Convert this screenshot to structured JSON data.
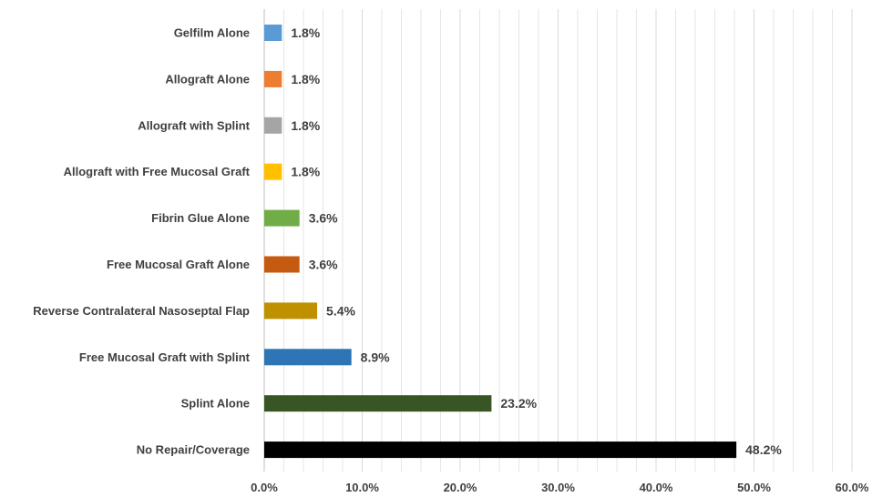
{
  "chart_data": {
    "type": "bar",
    "orientation": "horizontal",
    "categories": [
      "Gelfilm Alone",
      "Allograft Alone",
      "Allograft with Splint",
      "Allograft with Free Mucosal Graft",
      "Fibrin Glue Alone",
      "Free Mucosal Graft Alone",
      "Reverse Contralateral Nasoseptal Flap",
      "Free Mucosal Graft with Splint",
      "Splint Alone",
      "No Repair/Coverage"
    ],
    "values": [
      1.8,
      1.8,
      1.8,
      1.8,
      3.6,
      3.6,
      5.4,
      8.9,
      23.2,
      48.2
    ],
    "value_labels": [
      "1.8%",
      "1.8%",
      "1.8%",
      "1.8%",
      "3.6%",
      "3.6%",
      "5.4%",
      "8.9%",
      "23.2%",
      "48.2%"
    ],
    "colors": [
      "#5b9bd5",
      "#ed7d31",
      "#a5a5a5",
      "#ffc000",
      "#70ad47",
      "#c55a11",
      "#bf9000",
      "#2e75b6",
      "#375623",
      "#000000"
    ],
    "x_ticks": [
      "0.0%",
      "10.0%",
      "20.0%",
      "30.0%",
      "40.0%",
      "50.0%",
      "60.0%"
    ],
    "xlim": [
      0,
      60
    ],
    "title": "",
    "xlabel": "",
    "ylabel": "",
    "grid": true,
    "legend": "none"
  }
}
